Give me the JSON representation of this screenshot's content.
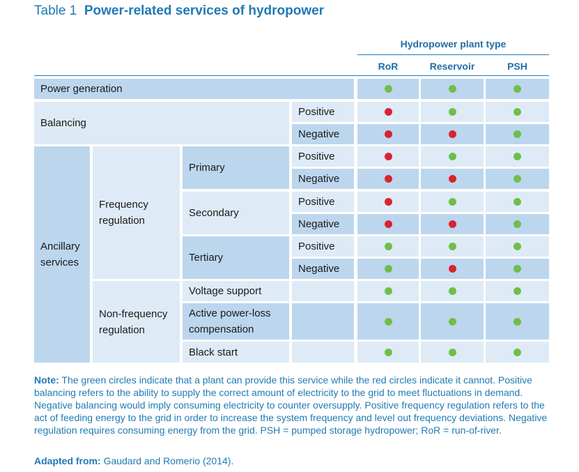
{
  "table": {
    "prefix": "Table 1",
    "title": "Power-related services of hydropower",
    "group_header": "Hydropower plant type",
    "columns": [
      "RoR",
      "Reservoir",
      "PSH"
    ],
    "labels": {
      "power_generation": "Power generation",
      "balancing": "Balancing",
      "ancillary": "Ancillary services",
      "frequency": "Frequency regulation",
      "non_frequency": "Non-frequency regulation",
      "primary": "Primary",
      "secondary": "Secondary",
      "tertiary": "Tertiary",
      "voltage": "Voltage support",
      "active_power": "Active power-loss compensation",
      "black_start": "Black start",
      "positive": "Positive",
      "negative": "Negative"
    },
    "rows": [
      {
        "service": "Power generation",
        "values": [
          "yes",
          "yes",
          "yes"
        ]
      },
      {
        "service": "Balancing – Positive",
        "values": [
          "no",
          "yes",
          "yes"
        ]
      },
      {
        "service": "Balancing – Negative",
        "values": [
          "no",
          "no",
          "yes"
        ]
      },
      {
        "service": "Primary – Positive",
        "values": [
          "no",
          "yes",
          "yes"
        ]
      },
      {
        "service": "Primary – Negative",
        "values": [
          "no",
          "no",
          "yes"
        ]
      },
      {
        "service": "Secondary – Positive",
        "values": [
          "no",
          "yes",
          "yes"
        ]
      },
      {
        "service": "Secondary – Negative",
        "values": [
          "no",
          "no",
          "yes"
        ]
      },
      {
        "service": "Tertiary – Positive",
        "values": [
          "yes",
          "yes",
          "yes"
        ]
      },
      {
        "service": "Tertiary – Negative",
        "values": [
          "yes",
          "no",
          "yes"
        ]
      },
      {
        "service": "Voltage support",
        "values": [
          "yes",
          "yes",
          "yes"
        ]
      },
      {
        "service": "Active power-loss compensation",
        "values": [
          "yes",
          "yes",
          "yes"
        ]
      },
      {
        "service": "Black start",
        "values": [
          "yes",
          "yes",
          "yes"
        ]
      }
    ]
  },
  "colors": {
    "yes": "#6fbf4a",
    "no": "#d9232f"
  },
  "note": {
    "label": "Note:",
    "text": "The green circles indicate that a plant can provide this service while the red circles indicate it cannot. Positive balancing refers to the ability to supply the correct amount of electricity to the grid to meet fluctuations in demand. Negative balancing would imply consuming electricity to counter oversupply. Positive frequency regulation refers to the act of feeding energy to the grid in order to increase the system frequency and level out frequency deviations. Negative regulation requires consuming energy from the grid. PSH = pumped storage hydropower; RoR = run-of-river."
  },
  "source": {
    "label": "Adapted from:",
    "text": "Gaudard and Romerio (2014)."
  }
}
